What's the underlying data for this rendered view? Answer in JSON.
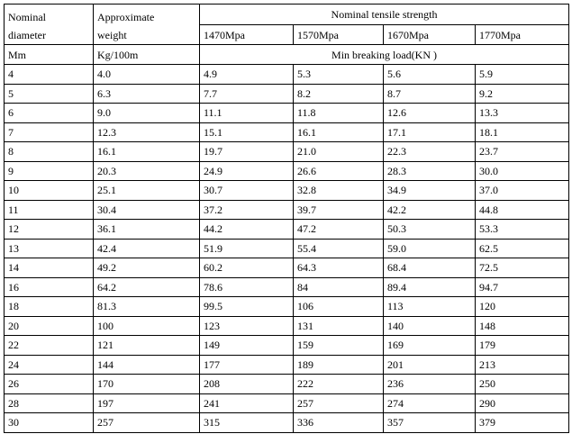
{
  "table": {
    "header": {
      "diameter": [
        "Nominal",
        "diameter"
      ],
      "weight": [
        "Approximate",
        "weight"
      ],
      "strength": "Nominal tensile strength",
      "grades": [
        "1470Mpa",
        "1570Mpa",
        "1670Mpa",
        "1770Mpa"
      ],
      "unit_diameter": "Mm",
      "unit_weight": "Kg/100m",
      "load": "Min breaking load(KN )"
    },
    "rows": [
      [
        "4",
        "4.0",
        "4.9",
        "5.3",
        "5.6",
        "5.9"
      ],
      [
        "5",
        "6.3",
        "7.7",
        "8.2",
        "8.7",
        "9.2"
      ],
      [
        "6",
        "9.0",
        "11.1",
        "11.8",
        "12.6",
        "13.3"
      ],
      [
        "7",
        "12.3",
        "15.1",
        "16.1",
        "17.1",
        "18.1"
      ],
      [
        "8",
        "16.1",
        "19.7",
        "21.0",
        "22.3",
        "23.7"
      ],
      [
        "9",
        "20.3",
        "24.9",
        "26.6",
        "28.3",
        "30.0"
      ],
      [
        "10",
        "25.1",
        "30.7",
        "32.8",
        "34.9",
        "37.0"
      ],
      [
        "11",
        "30.4",
        "37.2",
        "39.7",
        "42.2",
        "44.8"
      ],
      [
        "12",
        "36.1",
        "44.2",
        "47.2",
        "50.3",
        "53.3"
      ],
      [
        "13",
        "42.4",
        "51.9",
        "55.4",
        "59.0",
        "62.5"
      ],
      [
        "14",
        "49.2",
        "60.2",
        "64.3",
        "68.4",
        "72.5"
      ],
      [
        "16",
        "64.2",
        "78.6",
        "84",
        "89.4",
        "94.7"
      ],
      [
        "18",
        "81.3",
        "99.5",
        "106",
        "113",
        "120"
      ],
      [
        "20",
        "100",
        "123",
        "131",
        "140",
        "148"
      ],
      [
        "22",
        "121",
        "149",
        "159",
        "169",
        "179"
      ],
      [
        "24",
        "144",
        "177",
        "189",
        "201",
        "213"
      ],
      [
        "26",
        "170",
        "208",
        "222",
        "236",
        "250"
      ],
      [
        "28",
        "197",
        "241",
        "257",
        "274",
        "290"
      ],
      [
        "30",
        "257",
        "315",
        "336",
        "357",
        "379"
      ]
    ]
  }
}
